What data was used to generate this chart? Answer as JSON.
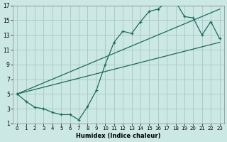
{
  "xlabel": "Humidex (Indice chaleur)",
  "bg_color": "#cce8e4",
  "grid_color": "#aaccc8",
  "line_color": "#1a6b5a",
  "xlim": [
    -0.5,
    23.5
  ],
  "ylim": [
    1,
    17
  ],
  "xticks": [
    0,
    1,
    2,
    3,
    4,
    5,
    6,
    7,
    8,
    9,
    10,
    11,
    12,
    13,
    14,
    15,
    16,
    17,
    18,
    19,
    20,
    21,
    22,
    23
  ],
  "yticks": [
    1,
    3,
    5,
    7,
    9,
    11,
    13,
    15,
    17
  ],
  "line1_x": [
    0,
    1,
    2,
    3,
    4,
    5,
    6,
    7,
    8,
    9,
    10,
    11,
    12,
    13,
    14,
    15,
    16,
    17,
    18,
    19,
    20,
    21,
    22,
    23
  ],
  "line1_y": [
    5,
    4,
    3.2,
    3.0,
    2.5,
    2.2,
    2.2,
    1.5,
    3.3,
    5.5,
    9,
    12,
    13.5,
    13.2,
    14.8,
    16.2,
    16.5,
    17.5,
    17.5,
    15.5,
    15.3,
    13,
    14.8,
    12.5
  ],
  "line2_x": [
    0,
    23
  ],
  "line2_y": [
    5,
    16.5
  ],
  "line3_x": [
    0,
    23
  ],
  "line3_y": [
    5,
    12
  ],
  "marker": "+"
}
